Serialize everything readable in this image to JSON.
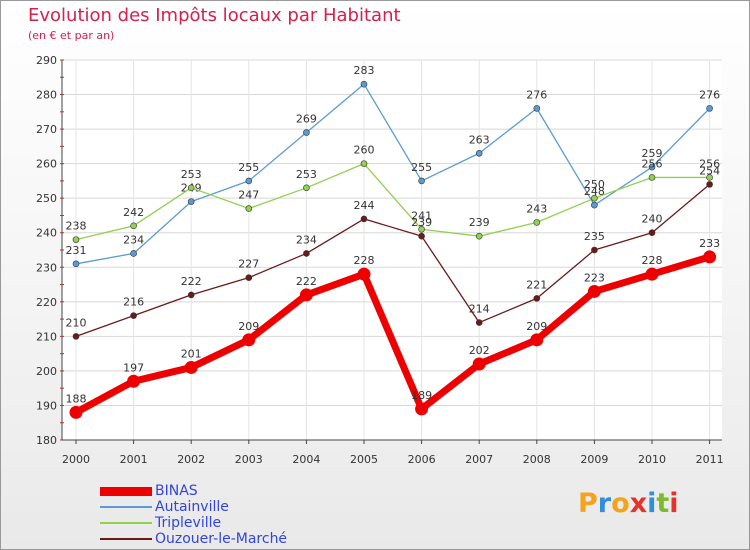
{
  "title": "Evolution des Impôts locaux par Habitant",
  "subtitle": "(en € et par an)",
  "brand": {
    "letters": [
      "P",
      "r",
      "o",
      "x",
      "i",
      "t",
      "i"
    ],
    "colors": [
      "#f5a21d",
      "#2f8fd8",
      "#f5a21d",
      "#e8312a",
      "#2f8fd8",
      "#7dbb2c",
      "#e8312a"
    ]
  },
  "chart_data": {
    "type": "line",
    "title": "Evolution des Impôts locaux par Habitant",
    "subtitle": "(en € et par an)",
    "categories": [
      "2000",
      "2001",
      "2002",
      "2003",
      "2004",
      "2005",
      "2006",
      "2007",
      "2008",
      "2009",
      "2010",
      "2011"
    ],
    "ylim": [
      180,
      290
    ],
    "yticks": [
      "180",
      "190",
      "200",
      "210",
      "220",
      "230",
      "240",
      "250",
      "260",
      "270",
      "280",
      "290"
    ],
    "grid": true,
    "legend_position": "bottom-left",
    "series": [
      {
        "name": "BINAS",
        "color": "#ee0000",
        "thick": true,
        "values": [
          188,
          197,
          201,
          209,
          222,
          228,
          189,
          202,
          209,
          223,
          228,
          233
        ]
      },
      {
        "name": "Autainville",
        "color": "#5b9bd5",
        "thick": false,
        "values": [
          231,
          234,
          249,
          255,
          269,
          283,
          255,
          263,
          276,
          248,
          259,
          276
        ]
      },
      {
        "name": "Tripleville",
        "color": "#92d050",
        "thick": false,
        "values": [
          238,
          242,
          253,
          247,
          253,
          260,
          241,
          239,
          243,
          250,
          256,
          256
        ]
      },
      {
        "name": "Ouzouer-le-Marché",
        "color": "#6b1a1a",
        "thick": false,
        "values": [
          210,
          216,
          222,
          227,
          234,
          244,
          239,
          214,
          221,
          235,
          240,
          254
        ]
      }
    ]
  }
}
